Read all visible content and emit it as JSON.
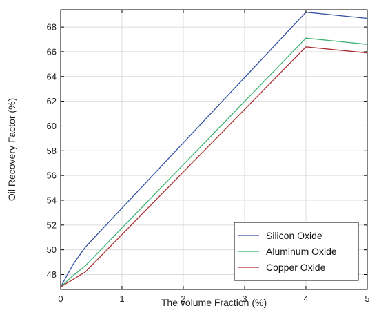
{
  "chart_data": {
    "type": "line",
    "xlabel": "The volume Fraction (%)",
    "ylabel": "Oil Recovery Factor (%)",
    "xlim": [
      0,
      5
    ],
    "ylim": [
      46.8,
      69.4
    ],
    "xticks": [
      0,
      1,
      2,
      3,
      4,
      5
    ],
    "yticks": [
      48,
      50,
      52,
      54,
      56,
      58,
      60,
      62,
      64,
      66,
      68
    ],
    "grid": true,
    "legend_position": "bottom-right",
    "series": [
      {
        "name": "Silicon Oxide",
        "color": "#3050a0",
        "x": [
          0,
          0.2,
          0.4,
          4,
          5
        ],
        "y": [
          47.0,
          48.8,
          50.2,
          69.2,
          68.7
        ]
      },
      {
        "name": "Aluminum Oxide",
        "color": "#3cb371",
        "x": [
          0,
          0.2,
          0.4,
          4,
          5
        ],
        "y": [
          47.0,
          47.9,
          48.7,
          67.1,
          66.6
        ]
      },
      {
        "name": "Copper Oxide",
        "color": "#a83232",
        "x": [
          0,
          0.2,
          0.4,
          4,
          5
        ],
        "y": [
          47.0,
          47.6,
          48.2,
          66.4,
          65.9
        ]
      }
    ]
  }
}
